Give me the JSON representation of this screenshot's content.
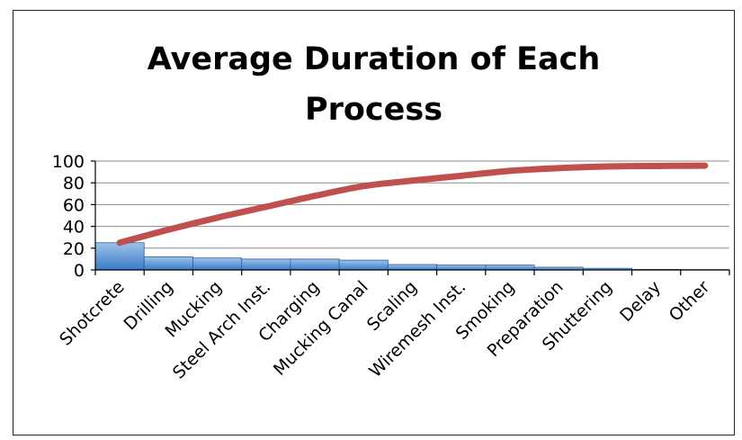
{
  "chart_data": {
    "type": "bar",
    "title": "Average Duration of Each Process",
    "title_lines": [
      "Average Duration of Each",
      "Process"
    ],
    "categories": [
      "Shotcrete",
      "Drilling",
      "Mucking",
      "Steel Arch Inst.",
      "Charging",
      "Mucking Canal",
      "Scaling",
      "Wiremesh Inst.",
      "Smoking",
      "Preparation",
      "Shuttering",
      "Delay",
      "Other"
    ],
    "series": [
      {
        "type": "bar",
        "values": [
          25,
          12,
          11,
          10,
          10,
          9,
          5,
          4.5,
          4.5,
          2.5,
          1.5,
          0.5,
          0.3
        ]
      },
      {
        "type": "line",
        "values": [
          25,
          37,
          48,
          58,
          68,
          77,
          82,
          86.5,
          91,
          93.5,
          95,
          95.5,
          95.8
        ]
      }
    ],
    "ylim": [
      0,
      100
    ],
    "yticks": [
      0,
      20,
      40,
      60,
      80,
      100
    ],
    "grid": true,
    "legend": "none",
    "xlabel": "",
    "ylabel": "",
    "colors": {
      "bar_fill_top": "#9cc3ea",
      "bar_fill_bottom": "#3a7bc8",
      "bar_stroke": "#2f5f9a",
      "line": "#c0504d",
      "grid": "#8c8c8c",
      "axis": "#000000"
    }
  }
}
